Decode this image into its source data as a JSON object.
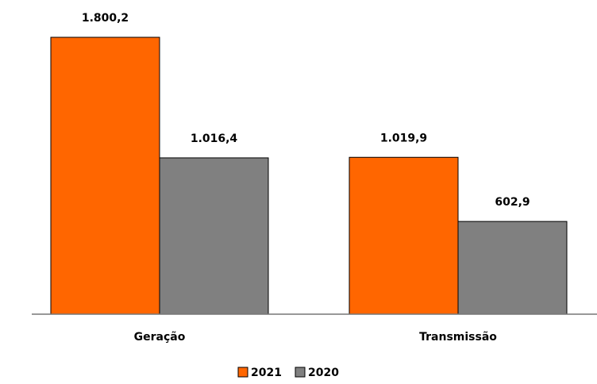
{
  "chart_data": {
    "type": "bar",
    "categories": [
      "Geração",
      "Transmissão"
    ],
    "series": [
      {
        "name": "2021",
        "color": "#ff6600",
        "values": [
          1800.2,
          1019.9
        ],
        "value_labels": [
          "1.800,2",
          "1.019,9"
        ]
      },
      {
        "name": "2020",
        "color": "#808080",
        "values": [
          1016.4,
          602.9
        ],
        "value_labels": [
          "1.016,4",
          "602,9"
        ]
      }
    ],
    "legend": "bottom"
  }
}
